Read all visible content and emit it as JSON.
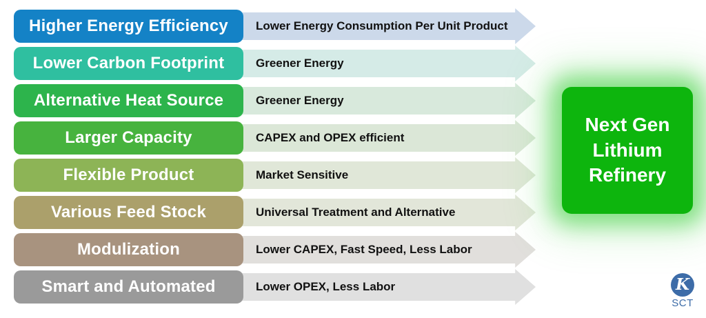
{
  "rows": [
    {
      "label": "Higher Energy Efficiency",
      "benefit": "Lower Energy Consumption Per Unit Product",
      "label_color": "#1482c6",
      "arrow_color": "#ccd9ea"
    },
    {
      "label": "Lower Carbon Footprint",
      "benefit": "Greener Energy",
      "label_color": "#2fbfa0",
      "arrow_color": "#d5ebe7"
    },
    {
      "label": "Alternative Heat Source",
      "benefit": "Greener Energy",
      "label_color": "#2db44c",
      "arrow_color": "#d8e9dc"
    },
    {
      "label": "Larger Capacity",
      "benefit": "CAPEX and OPEX efficient",
      "label_color": "#47b33e",
      "arrow_color": "#dbe7d7"
    },
    {
      "label": "Flexible Product",
      "benefit": "Market Sensitive",
      "label_color": "#8db456",
      "arrow_color": "#e0e7d8"
    },
    {
      "label": "Various Feed Stock",
      "benefit": "Universal Treatment and Alternative",
      "label_color": "#aba06b",
      "arrow_color": "#e2e6d9"
    },
    {
      "label": "Modulization",
      "benefit": "Lower CAPEX, Fast Speed, Less Labor",
      "label_color": "#a8937f",
      "arrow_color": "#e1dfdc"
    },
    {
      "label": "Smart and Automated",
      "benefit": "Lower OPEX, Less Labor",
      "label_color": "#9a9a9a",
      "arrow_color": "#e0e0e0"
    }
  ],
  "result_box": {
    "text": "Next Gen Lithium Refinery",
    "color": "#0db50d",
    "glow_color": "rgba(60, 205, 60, 0.55)"
  },
  "logo": {
    "monogram": "K",
    "text": "SCT",
    "color": "#3d6ca8"
  },
  "layout_colors": {
    "background": "#ffffff",
    "benefit_text": "#111111",
    "label_text": "#ffffff"
  }
}
